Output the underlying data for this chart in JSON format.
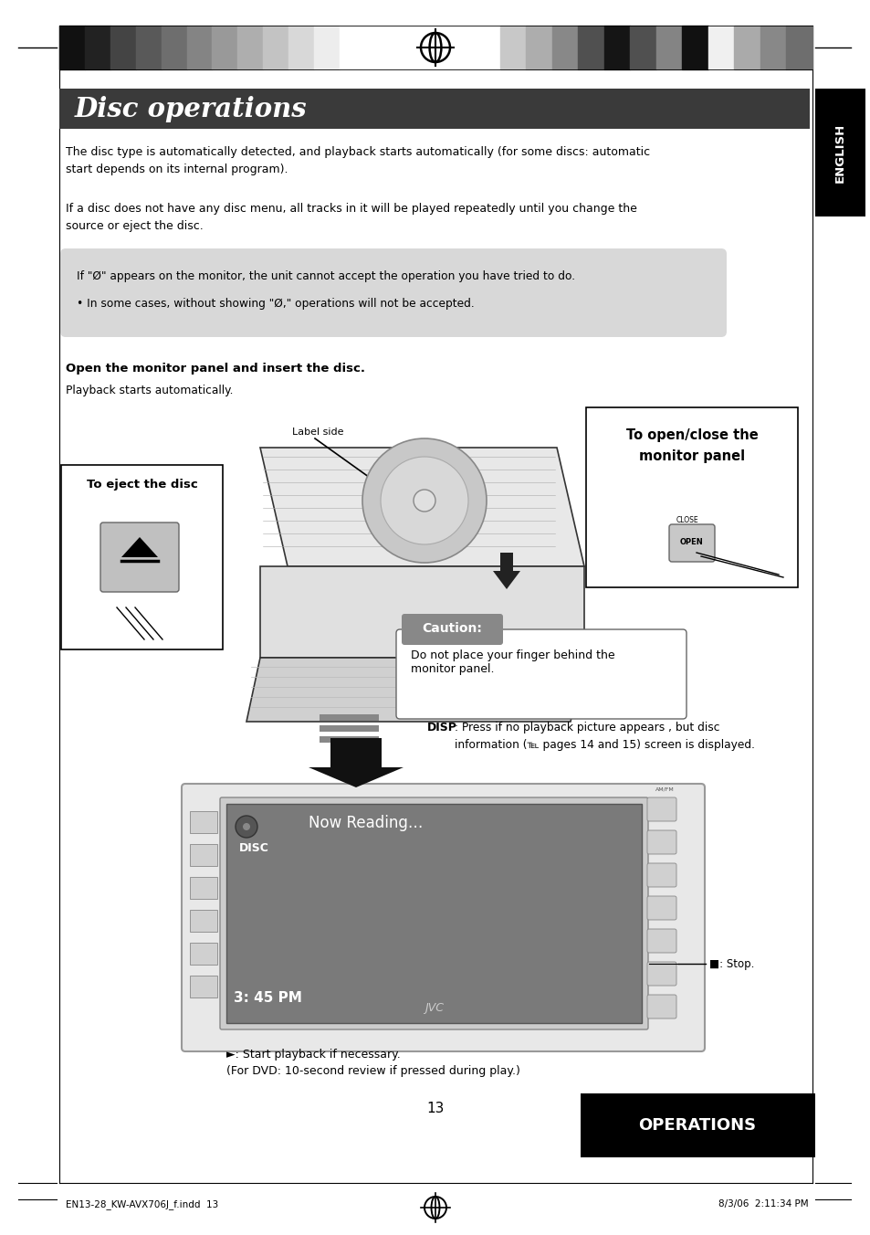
{
  "page_width": 9.54,
  "page_height": 13.52,
  "bg_color": "#ffffff",
  "title": "Disc operations",
  "title_bg": "#3a3a3a",
  "title_text_color": "#ffffff",
  "english_label": "ENGLISH",
  "english_bg": "#000000",
  "english_text_color": "#ffffff",
  "operations_label": "OPERATIONS",
  "operations_bg": "#000000",
  "operations_text_color": "#ffffff",
  "para1": "The disc type is automatically detected, and playback starts automatically (for some discs: automatic\nstart depends on its internal program).",
  "para2": "If a disc does not have any disc menu, all tracks in it will be played repeatedly until you change the\nsource or eject the disc.",
  "note_bg": "#d8d8d8",
  "note_line1": "If \"Ø\" appears on the monitor, the unit cannot accept the operation you have tried to do.",
  "note_line2": "• In some cases, without showing \"Ø,\" operations will not be accepted.",
  "heading": "Open the monitor panel and insert the disc.",
  "subheading": "Playback starts automatically.",
  "label_side": "Label side",
  "box_eject_title": "To eject the disc",
  "box_open_close_title": "To open/close the\nmonitor panel",
  "caution_label": "Caution:",
  "caution_text": "Do not place your finger behind the\nmonitor panel.",
  "disp_bold": "DISP",
  "disp_text": ": Press if no playback picture appears , but disc\ninformation (℡ pages 14 and 15) screen is displayed.",
  "disc_screen_label": "DISC",
  "disc_screen_text": "Now Reading…",
  "disc_screen_time": "3: 45 PM",
  "jvc_text": "JVC",
  "stop_label": "■: Stop.",
  "play_label": "►: Start playback if necessary.\n(For DVD: 10-second review if pressed during play.)",
  "page_number": "13",
  "footer_left": "EN13-28_KW-AVX706J_f.indd  13",
  "footer_right": "8/3/06  2:11:34 PM",
  "color_bars_left": [
    "#111111",
    "#222222",
    "#444444",
    "#595959",
    "#6e6e6e",
    "#848484",
    "#999999",
    "#aeaeae",
    "#c3c3c3",
    "#d8d8d8",
    "#ededed",
    "#ffffff"
  ],
  "color_bars_right": [
    "#c8c8c8",
    "#adadad",
    "#888888",
    "#505050",
    "#151515",
    "#505050",
    "#848484",
    "#111111",
    "#f0f0f0",
    "#aaaaaa",
    "#888888",
    "#6e6e6e"
  ]
}
